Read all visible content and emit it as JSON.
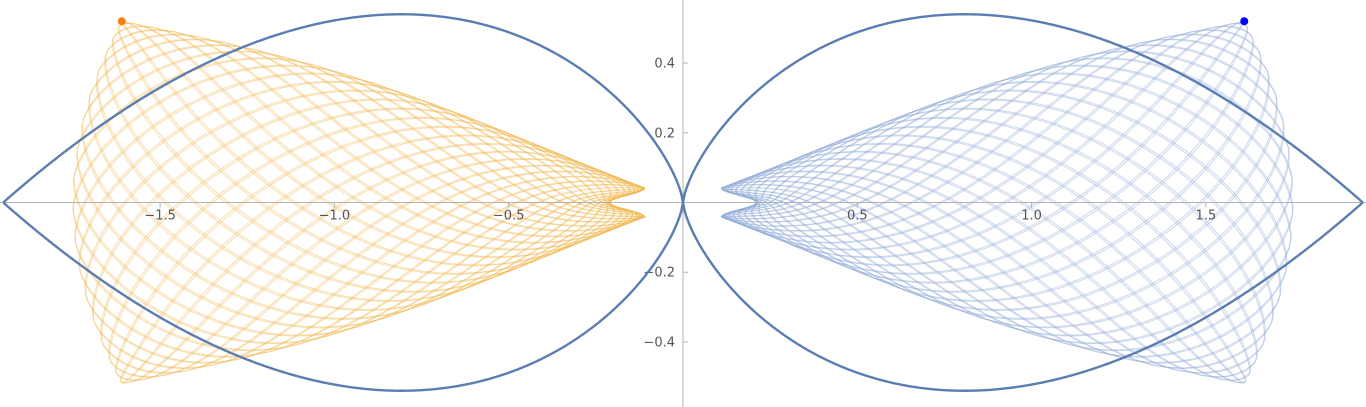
{
  "chart_data": {
    "type": "line",
    "title": "",
    "xlabel": "",
    "ylabel": "",
    "xlim": [
      -1.95,
      1.95
    ],
    "ylim": [
      -0.58,
      0.58
    ],
    "grid": false,
    "x_ticks": [
      {
        "value": -1.5,
        "label": "−1.5"
      },
      {
        "value": -1.0,
        "label": "−1.0"
      },
      {
        "value": -0.5,
        "label": "−0.5"
      },
      {
        "value": 0.5,
        "label": "0.5"
      },
      {
        "value": 1.0,
        "label": "1.0"
      },
      {
        "value": 1.5,
        "label": "1.5"
      }
    ],
    "y_ticks": [
      {
        "value": 0.4,
        "label": "0.4"
      },
      {
        "value": 0.2,
        "label": "0.2"
      },
      {
        "value": -0.2,
        "label": "−0.2"
      },
      {
        "value": -0.4,
        "label": "−0.4"
      }
    ],
    "boundary": {
      "description": "lens-shaped curve crossing at the origin",
      "cusp": [
        0,
        0
      ],
      "x_at_y0": 1.95,
      "max_y": 0.54,
      "max_y_at_x": 0.65,
      "color": "#5b7db1"
    },
    "series": [
      {
        "side": "left",
        "color": "#f0b44c",
        "vertex_top": [
          -1.61,
          0.52
        ],
        "vertex_bottom": [
          -1.61,
          -0.52
        ],
        "outer_x": -1.75,
        "inner_x": -0.1
      },
      {
        "side": "right",
        "color": "#8fa9d6",
        "vertex_top": [
          1.61,
          0.52
        ],
        "vertex_bottom": [
          1.61,
          -0.52
        ],
        "outer_x": 1.75,
        "inner_x": 0.1
      }
    ],
    "points": [
      {
        "x": -1.61,
        "y": 0.52,
        "color": "#ff7f0e"
      },
      {
        "x": 1.61,
        "y": 0.52,
        "color": "#0000ff"
      }
    ]
  }
}
